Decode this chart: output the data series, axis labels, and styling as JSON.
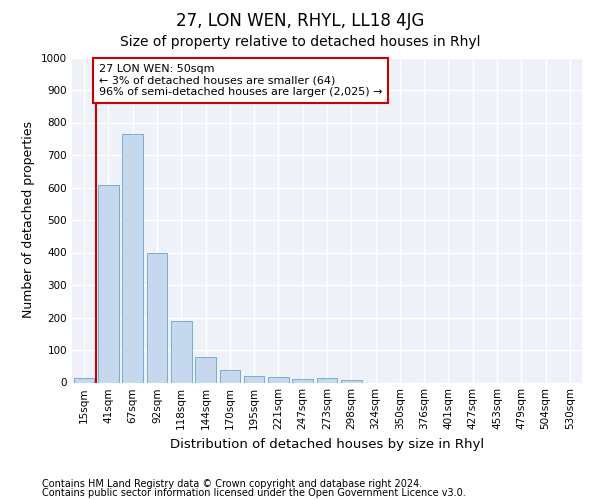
{
  "title": "27, LON WEN, RHYL, LL18 4JG",
  "subtitle": "Size of property relative to detached houses in Rhyl",
  "xlabel": "Distribution of detached houses by size in Rhyl",
  "ylabel": "Number of detached properties",
  "categories": [
    "15sqm",
    "41sqm",
    "67sqm",
    "92sqm",
    "118sqm",
    "144sqm",
    "170sqm",
    "195sqm",
    "221sqm",
    "247sqm",
    "273sqm",
    "298sqm",
    "324sqm",
    "350sqm",
    "376sqm",
    "401sqm",
    "427sqm",
    "453sqm",
    "479sqm",
    "504sqm",
    "530sqm"
  ],
  "values": [
    15,
    607,
    765,
    400,
    190,
    78,
    40,
    20,
    18,
    12,
    15,
    8,
    0,
    0,
    0,
    0,
    0,
    0,
    0,
    0,
    0
  ],
  "bar_color": "#c5d8ee",
  "bar_edge_color": "#7aadd4",
  "highlight_color": "#cc0000",
  "annotation_line1": "27 LON WEN: 50sqm",
  "annotation_line2": "← 3% of detached houses are smaller (64)",
  "annotation_line3": "96% of semi-detached houses are larger (2,025) →",
  "annotation_box_color": "#cc0000",
  "ylim": [
    0,
    1000
  ],
  "yticks": [
    0,
    100,
    200,
    300,
    400,
    500,
    600,
    700,
    800,
    900,
    1000
  ],
  "footer_line1": "Contains HM Land Registry data © Crown copyright and database right 2024.",
  "footer_line2": "Contains public sector information licensed under the Open Government Licence v3.0.",
  "bg_color": "#eef2f8",
  "grid_color": "#ffffff",
  "title_fontsize": 12,
  "subtitle_fontsize": 10,
  "axis_label_fontsize": 9,
  "tick_fontsize": 7.5,
  "footer_fontsize": 7,
  "annotation_fontsize": 8
}
